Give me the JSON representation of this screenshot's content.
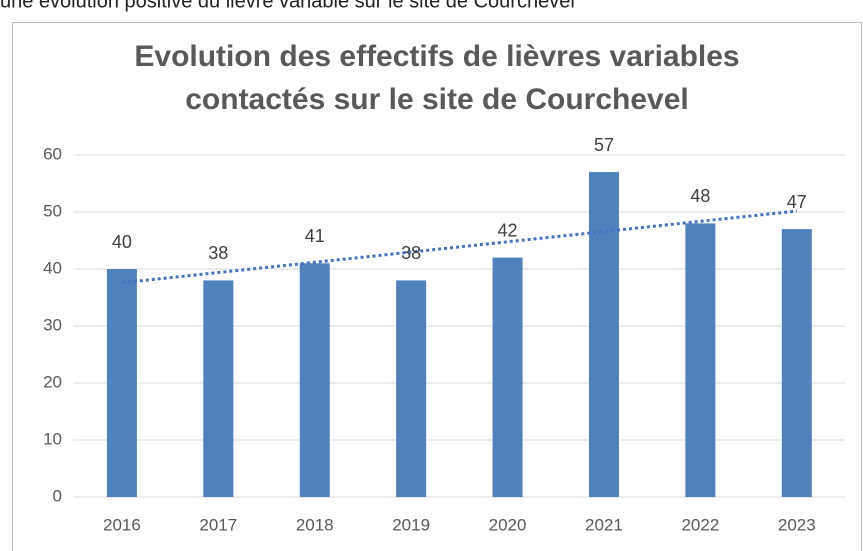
{
  "caption": "une évolution positive du lièvre variable sur le site de Courchevel",
  "chart_data": {
    "type": "bar",
    "title": [
      "Evolution des effectifs de lièvres variables",
      "contactés sur le site de Courchevel"
    ],
    "categories": [
      "2016",
      "2017",
      "2018",
      "2019",
      "2020",
      "2021",
      "2022",
      "2023"
    ],
    "values": [
      40,
      38,
      41,
      38,
      42,
      57,
      48,
      47
    ],
    "color": "#4f81bd",
    "ylim": [
      0,
      60
    ],
    "yticks": [
      0,
      10,
      20,
      30,
      40,
      50,
      60
    ],
    "grid": true,
    "trendline": {
      "type": "linear",
      "color": "#4472c4"
    }
  }
}
